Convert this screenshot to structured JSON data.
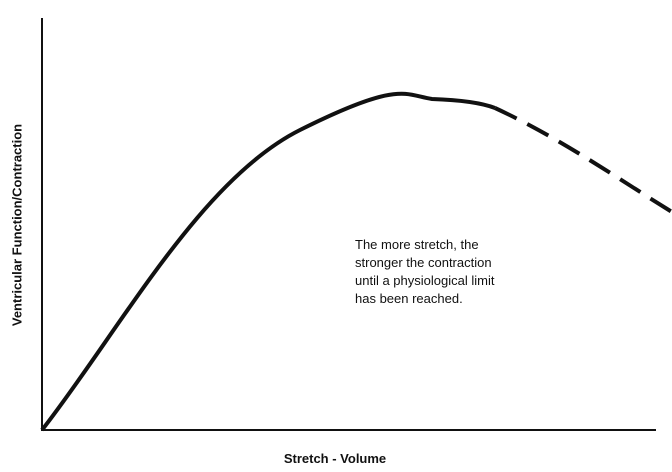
{
  "diagram": {
    "y_axis_label": "Ventricular Function/Contraction",
    "x_axis_label": "Stretch - Volume",
    "annotation": [
      "The more stretch, the",
      "stronger the contraction",
      "until a physiological limit",
      "has been reached."
    ]
  }
}
